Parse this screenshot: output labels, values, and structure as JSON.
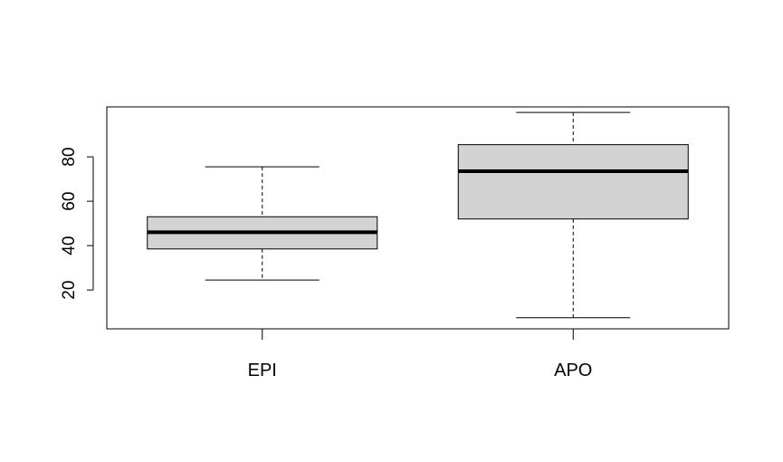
{
  "chart_data": {
    "type": "box",
    "title": "",
    "xlabel": "",
    "ylabel": "",
    "ylim": [
      2.5,
      102.5
    ],
    "yticks": [
      20,
      40,
      60,
      80
    ],
    "grid": false,
    "categories": [
      "EPI",
      "APO"
    ],
    "boxes": [
      {
        "category": "EPI",
        "whisker_low": 24.5,
        "q1": 38.5,
        "median": 46,
        "q3": 53,
        "whisker_high": 75.5
      },
      {
        "category": "APO",
        "whisker_low": 7.5,
        "q1": 52,
        "median": 73.5,
        "q3": 85.5,
        "whisker_high": 100
      }
    ],
    "colors": {
      "box_fill": "#d3d3d3",
      "stroke": "#000000",
      "background": "#ffffff"
    }
  }
}
